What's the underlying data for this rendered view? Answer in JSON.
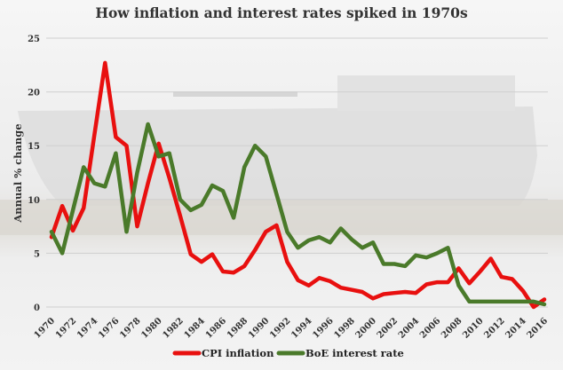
{
  "chart_data": {
    "type": "line",
    "title": "How inflation and interest rates spiked in 1970s",
    "xlabel": "",
    "ylabel": "Annual % change",
    "xlim": [
      1970,
      2016
    ],
    "ylim": [
      0,
      25
    ],
    "yticks": [
      0,
      5,
      10,
      15,
      20,
      25
    ],
    "xticks": [
      1970,
      1972,
      1974,
      1976,
      1978,
      1980,
      1982,
      1984,
      1986,
      1988,
      1990,
      1992,
      1994,
      1996,
      1998,
      2000,
      2002,
      2004,
      2006,
      2008,
      2010,
      2012,
      2014,
      2016
    ],
    "grid": true,
    "legend_position": "bottom",
    "x": [
      1970,
      1971,
      1972,
      1973,
      1974,
      1975,
      1976,
      1977,
      1978,
      1979,
      1980,
      1981,
      1982,
      1983,
      1984,
      1985,
      1986,
      1987,
      1988,
      1989,
      1990,
      1991,
      1992,
      1993,
      1994,
      1995,
      1996,
      1997,
      1998,
      1999,
      2000,
      2001,
      2002,
      2003,
      2004,
      2005,
      2006,
      2007,
      2008,
      2009,
      2010,
      2011,
      2012,
      2013,
      2014,
      2015,
      2016
    ],
    "series": [
      {
        "name": "CPI inflation",
        "color": "#e8100f",
        "values": [
          6.5,
          9.4,
          7.1,
          9.2,
          16.0,
          22.7,
          15.8,
          15.0,
          7.5,
          11.5,
          15.2,
          12.0,
          8.5,
          4.9,
          4.2,
          4.9,
          3.3,
          3.2,
          3.8,
          5.3,
          7.0,
          7.6,
          4.2,
          2.5,
          2.0,
          2.7,
          2.4,
          1.8,
          1.6,
          1.4,
          0.8,
          1.2,
          1.3,
          1.4,
          1.3,
          2.1,
          2.3,
          2.3,
          3.6,
          2.2,
          3.3,
          4.5,
          2.8,
          2.6,
          1.5,
          0.0,
          0.7
        ]
      },
      {
        "name": "BoE interest rate",
        "color": "#4a7a2a",
        "values": [
          7.0,
          5.0,
          9.0,
          13.0,
          11.5,
          11.2,
          14.3,
          7.0,
          12.5,
          17.0,
          14.0,
          14.3,
          10.0,
          9.0,
          9.5,
          11.3,
          10.8,
          8.3,
          13.0,
          15.0,
          14.0,
          10.5,
          7.0,
          5.5,
          6.2,
          6.5,
          6.0,
          7.3,
          6.3,
          5.5,
          6.0,
          4.0,
          4.0,
          3.8,
          4.8,
          4.6,
          5.0,
          5.5,
          2.0,
          0.5,
          0.5,
          0.5,
          0.5,
          0.5,
          0.5,
          0.5,
          0.25
        ]
      }
    ]
  }
}
